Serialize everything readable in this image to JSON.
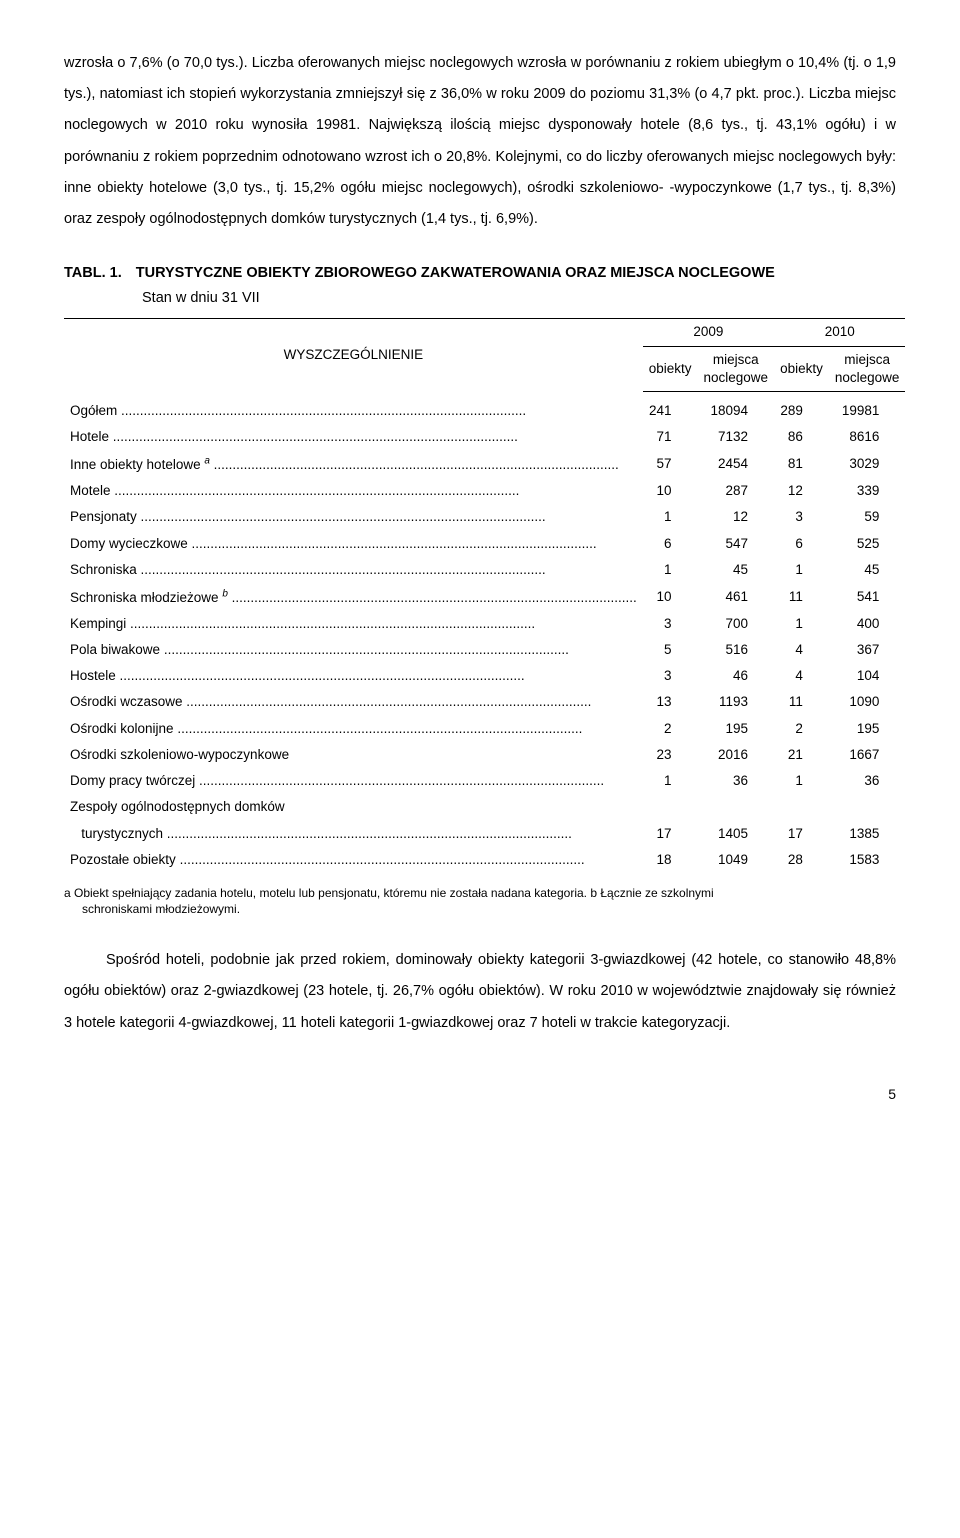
{
  "paragraphs": {
    "p1": "wzrosła o 7,6% (o 70,0 tys.). Liczba oferowanych miejsc noclegowych wzrosła w porównaniu z rokiem ubiegłym o 10,4% (tj. o 1,9 tys.), natomiast ich stopień wykorzystania zmniejszył się z 36,0% w roku 2009 do poziomu 31,3% (o 4,7 pkt. proc.). Liczba miejsc noclegowych w 2010 roku wynosiła 19981. Największą ilością miejsc dysponowały hotele (8,6 tys., tj. 43,1% ogółu) i w porównaniu z rokiem poprzednim odnotowano wzrost ich o 20,8%. Kolejnymi, co do liczby oferowanych miejsc noclegowych były: inne obiekty hotelowe (3,0 tys., tj. 15,2% ogółu miejsc noclegowych), ośrodki szkoleniowo- -wypoczynkowe (1,7 tys., tj. 8,3%) oraz zespoły ogólnodostępnych domków turystycznych (1,4 tys., tj. 6,9%).",
    "p2": "Spośród hoteli, podobnie jak przed rokiem, dominowały obiekty kategorii 3-gwiazdkowej (42 hotele, co stanowiło 48,8% ogółu obiektów) oraz 2-gwiazdkowej (23 hotele, tj. 26,7% ogółu obiektów). W roku 2010 w województwie znajdowały się również 3 hotele kategorii 4-gwiazdkowej, 11 hoteli kategorii 1-gwiazdkowej oraz 7 hoteli w trakcie kategoryzacji."
  },
  "table": {
    "label_num": "TABL. 1.",
    "title_line1": "TURYSTYCZNE OBIEKTY ZBIOROWEGO ZAKWATEROWANIA ORAZ MIEJSCA",
    "title_line2": "NOCLEGOWE",
    "subtitle": "Stan w dniu 31 VII",
    "header": {
      "spec": "WYSZCZEGÓLNIENIE",
      "year1": "2009",
      "year2": "2010",
      "col_obj": "obiekty",
      "col_places_l1": "miejsca",
      "col_places_l2": "noclegowe"
    },
    "rows": [
      {
        "label": "Ogółem",
        "dots": true,
        "v": [
          "241",
          "18094",
          "289",
          "19981"
        ]
      },
      {
        "label": "Hotele",
        "dots": true,
        "v": [
          "71",
          "7132",
          "86",
          "8616"
        ]
      },
      {
        "label": "Inne obiekty hotelowe ",
        "sup": "a",
        "dots": true,
        "v": [
          "57",
          "2454",
          "81",
          "3029"
        ]
      },
      {
        "label": "Motele",
        "dots": true,
        "v": [
          "10",
          "287",
          "12",
          "339"
        ]
      },
      {
        "label": "Pensjonaty",
        "dots": true,
        "v": [
          "1",
          "12",
          "3",
          "59"
        ]
      },
      {
        "label": "Domy wycieczkowe",
        "dots": true,
        "v": [
          "6",
          "547",
          "6",
          "525"
        ]
      },
      {
        "label": "Schroniska",
        "dots": true,
        "v": [
          "1",
          "45",
          "1",
          "45"
        ]
      },
      {
        "label": "Schroniska młodzieżowe ",
        "sup": "b",
        "dots": true,
        "v": [
          "10",
          "461",
          "11",
          "541"
        ]
      },
      {
        "label": "Kempingi",
        "dots": true,
        "v": [
          "3",
          "700",
          "1",
          "400"
        ]
      },
      {
        "label": "Pola biwakowe",
        "dots": true,
        "v": [
          "5",
          "516",
          "4",
          "367"
        ]
      },
      {
        "label": "Hostele",
        "dots": true,
        "v": [
          "3",
          "46",
          "4",
          "104"
        ]
      },
      {
        "label": "Ośrodki wczasowe",
        "dots": true,
        "v": [
          "13",
          "1193",
          "11",
          "1090"
        ]
      },
      {
        "label": "Ośrodki kolonijne",
        "dots": true,
        "v": [
          "2",
          "195",
          "2",
          "195"
        ]
      },
      {
        "label": "Ośrodki szkoleniowo-wypoczynkowe",
        "dots": false,
        "v": [
          "23",
          "2016",
          "21",
          "1667"
        ]
      },
      {
        "label": "Domy pracy twórczej",
        "dots": true,
        "v": [
          "1",
          "36",
          "1",
          "36"
        ]
      },
      {
        "label": "Zespoły ogólnodostępnych domków",
        "continuation": true
      },
      {
        "label": "turystycznych",
        "indent": true,
        "dots": true,
        "v": [
          "17",
          "1405",
          "17",
          "1385"
        ]
      },
      {
        "label": "Pozostałe obiekty",
        "dots": true,
        "v": [
          "18",
          "1049",
          "28",
          "1583"
        ]
      }
    ],
    "footnote_a": "a Obiekt spełniający zadania hotelu, motelu lub pensjonatu, któremu nie została nadana kategoria. b Łącznie ze szkolnymi",
    "footnote_b": "schroniskami młodzieżowymi."
  },
  "page_number": "5"
}
